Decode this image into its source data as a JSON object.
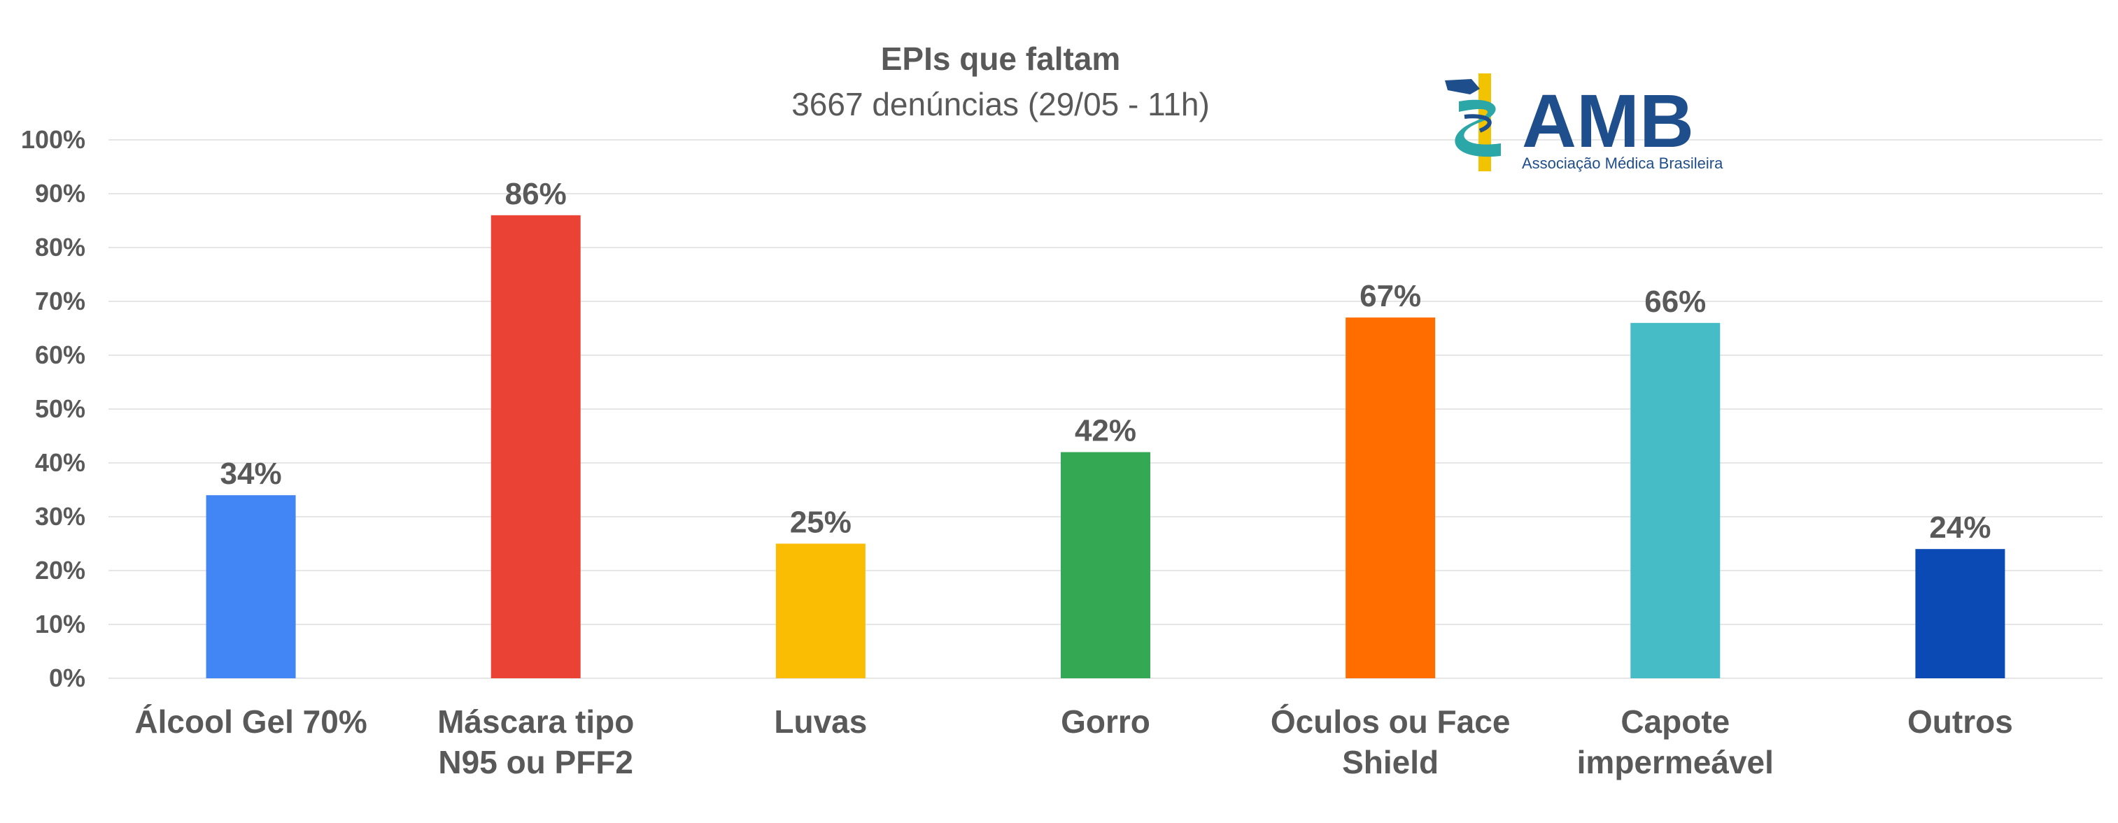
{
  "chart_data": {
    "type": "bar",
    "title": "EPIs que faltam",
    "subtitle": "3667 denúncias (29/05 - 11h)",
    "categories": [
      [
        "Álcool Gel 70%"
      ],
      [
        "Máscara tipo",
        "N95 ou PFF2"
      ],
      [
        "Luvas"
      ],
      [
        "Gorro"
      ],
      [
        "Óculos ou Face",
        "Shield"
      ],
      [
        "Capote",
        "impermeável"
      ],
      [
        "Outros"
      ]
    ],
    "values": [
      34,
      86,
      25,
      42,
      67,
      66,
      24
    ],
    "data_labels": [
      "34%",
      "86%",
      "25%",
      "42%",
      "67%",
      "66%",
      "24%"
    ],
    "colors": [
      "#4285F4",
      "#EA4335",
      "#FBBC04",
      "#34A853",
      "#FF6D01",
      "#46BDC6",
      "#0B49B5"
    ],
    "yticks": [
      "0%",
      "10%",
      "20%",
      "30%",
      "40%",
      "50%",
      "60%",
      "70%",
      "80%",
      "90%",
      "100%"
    ],
    "ylim": [
      0,
      100
    ],
    "grid": true,
    "xlabel": "",
    "ylabel": ""
  },
  "logo": {
    "name": "AMB",
    "subtitle": "Associação Médica Brasileira",
    "primary_color": "#1F4E8C",
    "accent_color": "#2AA7A6",
    "gold_color": "#F2C300"
  }
}
